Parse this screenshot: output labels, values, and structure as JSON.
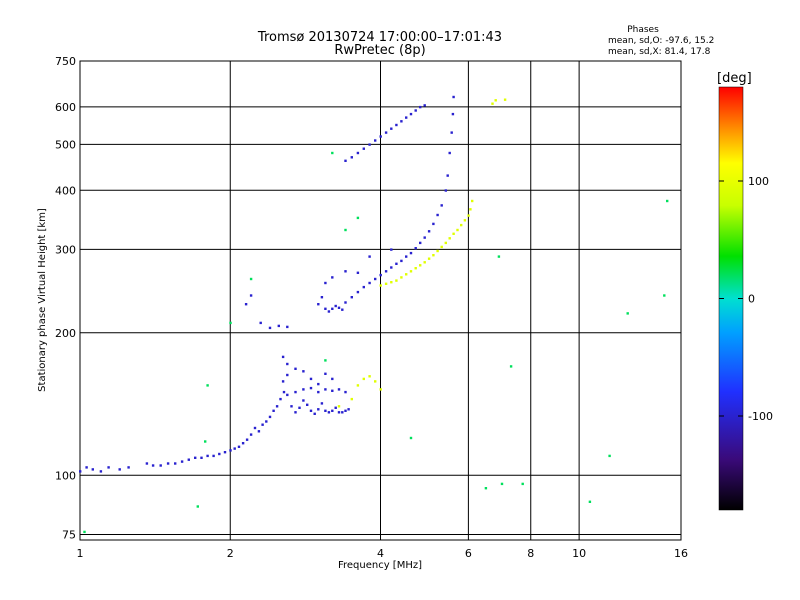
{
  "chart_data": {
    "type": "scatter",
    "title": "Tromsø 20130724 17:00:00–17:01:43",
    "subtitle": "RwPretec (8p)",
    "phases": {
      "heading": "Phases",
      "line1": "mean, sd,O: -97.6, 15.2",
      "line2": "mean, sd,X:  81.4, 17.8"
    },
    "xlabel": "Frequency [MHz]",
    "ylabel": "Stationary phase Virtual Height [km]",
    "x_scale": "log",
    "y_scale": "log",
    "xlim": [
      1,
      16
    ],
    "ylim": [
      73,
      750
    ],
    "x_ticks": [
      1,
      2,
      4,
      6,
      8,
      10,
      16
    ],
    "y_ticks": [
      75,
      100,
      200,
      300,
      400,
      500,
      600,
      750
    ],
    "grid": true,
    "colorbar": {
      "label": "[deg]",
      "range": [
        -180,
        180
      ],
      "ticks": [
        100,
        0,
        -100
      ]
    },
    "series": [
      {
        "points": [
          [
            1.0,
            102
          ],
          [
            1.03,
            104
          ],
          [
            1.06,
            103
          ],
          [
            1.1,
            102
          ],
          [
            1.14,
            104
          ],
          [
            1.2,
            103
          ],
          [
            1.25,
            104
          ],
          [
            1.36,
            106
          ],
          [
            1.4,
            105
          ],
          [
            1.45,
            105
          ],
          [
            1.5,
            106
          ],
          [
            1.55,
            106
          ],
          [
            1.6,
            107
          ],
          [
            1.65,
            108
          ],
          [
            1.7,
            109
          ],
          [
            1.75,
            109
          ],
          [
            1.8,
            110
          ],
          [
            1.85,
            110
          ],
          [
            1.9,
            111
          ],
          [
            1.95,
            112
          ],
          [
            2.0,
            113
          ],
          [
            2.04,
            114
          ],
          [
            2.08,
            115
          ],
          [
            2.12,
            117
          ],
          [
            2.16,
            119
          ],
          [
            2.2,
            122
          ],
          [
            2.24,
            126
          ],
          [
            2.28,
            124
          ],
          [
            2.32,
            128
          ],
          [
            2.36,
            130
          ],
          [
            2.4,
            133
          ],
          [
            2.44,
            137
          ],
          [
            2.48,
            140
          ],
          [
            2.52,
            145
          ],
          [
            2.56,
            150
          ],
          [
            2.6,
            148
          ],
          [
            2.65,
            140
          ],
          [
            2.7,
            136
          ],
          [
            2.75,
            139
          ],
          [
            2.8,
            144
          ],
          [
            2.85,
            141
          ],
          [
            2.9,
            137
          ],
          [
            2.95,
            135
          ],
          [
            3.0,
            138
          ],
          [
            3.05,
            142
          ],
          [
            3.1,
            137
          ],
          [
            3.15,
            136
          ],
          [
            3.2,
            137
          ],
          [
            3.25,
            139
          ],
          [
            3.3,
            136
          ],
          [
            3.35,
            136
          ],
          [
            3.4,
            137
          ],
          [
            3.45,
            138
          ],
          [
            2.55,
            158
          ],
          [
            2.6,
            163
          ],
          [
            2.7,
            150
          ],
          [
            2.8,
            152
          ],
          [
            2.9,
            153
          ],
          [
            3.0,
            150
          ],
          [
            3.1,
            152
          ],
          [
            3.2,
            151
          ],
          [
            2.15,
            230
          ],
          [
            2.2,
            240
          ],
          [
            2.3,
            210
          ],
          [
            2.4,
            205
          ],
          [
            2.5,
            207
          ],
          [
            2.6,
            206
          ],
          [
            2.55,
            178
          ],
          [
            2.6,
            172
          ],
          [
            2.7,
            168
          ],
          [
            2.8,
            166
          ],
          [
            2.9,
            160
          ],
          [
            3.0,
            156
          ],
          [
            3.1,
            164
          ],
          [
            3.2,
            160
          ],
          [
            3.3,
            152
          ],
          [
            3.4,
            150
          ],
          [
            3.0,
            230
          ],
          [
            3.05,
            238
          ],
          [
            3.1,
            225
          ],
          [
            3.15,
            222
          ],
          [
            3.2,
            225
          ],
          [
            3.25,
            228
          ],
          [
            3.3,
            226
          ],
          [
            3.35,
            224
          ],
          [
            3.4,
            232
          ],
          [
            3.5,
            238
          ],
          [
            3.6,
            244
          ],
          [
            3.7,
            250
          ],
          [
            3.8,
            255
          ],
          [
            3.9,
            260
          ],
          [
            4.0,
            265
          ],
          [
            4.1,
            270
          ],
          [
            4.2,
            275
          ],
          [
            4.3,
            280
          ],
          [
            4.4,
            284
          ],
          [
            4.5,
            290
          ],
          [
            4.6,
            295
          ],
          [
            4.7,
            302
          ],
          [
            4.8,
            310
          ],
          [
            4.9,
            318
          ],
          [
            5.0,
            328
          ],
          [
            5.1,
            340
          ],
          [
            5.2,
            355
          ],
          [
            5.3,
            372
          ],
          [
            5.4,
            400
          ],
          [
            5.45,
            430
          ],
          [
            5.5,
            480
          ],
          [
            5.55,
            530
          ],
          [
            5.58,
            580
          ],
          [
            5.6,
            630
          ],
          [
            3.1,
            255
          ],
          [
            3.2,
            262
          ],
          [
            3.4,
            270
          ],
          [
            3.6,
            268
          ],
          [
            3.8,
            290
          ],
          [
            4.2,
            300
          ],
          [
            3.4,
            462
          ],
          [
            3.5,
            470
          ],
          [
            3.6,
            480
          ],
          [
            3.7,
            490
          ],
          [
            3.8,
            500
          ],
          [
            3.9,
            510
          ],
          [
            4.0,
            520
          ],
          [
            4.1,
            530
          ],
          [
            4.2,
            540
          ],
          [
            4.3,
            550
          ],
          [
            4.4,
            560
          ],
          [
            4.5,
            570
          ],
          [
            4.6,
            580
          ],
          [
            4.7,
            590
          ],
          [
            4.8,
            600
          ],
          [
            4.9,
            605
          ]
        ],
        "phase": -100
      },
      {
        "points": [
          [
            4.0,
            252
          ],
          [
            4.1,
            254
          ],
          [
            4.2,
            256
          ],
          [
            4.3,
            258
          ],
          [
            4.4,
            262
          ],
          [
            4.5,
            266
          ],
          [
            4.6,
            270
          ],
          [
            4.7,
            274
          ],
          [
            4.8,
            278
          ],
          [
            4.9,
            282
          ],
          [
            5.0,
            287
          ],
          [
            5.1,
            292
          ],
          [
            5.2,
            298
          ],
          [
            5.3,
            304
          ],
          [
            5.4,
            310
          ],
          [
            5.5,
            317
          ],
          [
            5.6,
            324
          ],
          [
            5.7,
            330
          ],
          [
            5.8,
            338
          ],
          [
            5.9,
            346
          ],
          [
            6.0,
            354
          ],
          [
            6.05,
            365
          ],
          [
            6.1,
            380
          ],
          [
            3.6,
            155
          ],
          [
            3.7,
            160
          ],
          [
            3.8,
            162
          ],
          [
            3.9,
            158
          ],
          [
            4.0,
            152
          ],
          [
            3.5,
            145
          ],
          [
            3.3,
            140
          ],
          [
            6.7,
            610
          ],
          [
            6.8,
            620
          ],
          [
            7.1,
            622
          ]
        ],
        "phase": 95
      },
      {
        "points": [
          [
            1.02,
            76
          ],
          [
            1.72,
            86
          ],
          [
            1.78,
            118
          ],
          [
            1.8,
            155
          ],
          [
            2.0,
            210
          ],
          [
            2.2,
            260
          ],
          [
            3.1,
            175
          ],
          [
            4.6,
            120
          ],
          [
            6.5,
            94
          ],
          [
            7.0,
            96
          ],
          [
            7.7,
            96
          ],
          [
            11.5,
            110
          ],
          [
            14.8,
            240
          ],
          [
            10.5,
            88
          ],
          [
            12.5,
            220
          ],
          [
            15.0,
            380
          ],
          [
            7.3,
            170
          ],
          [
            6.9,
            290
          ],
          [
            3.2,
            480
          ],
          [
            3.4,
            330
          ],
          [
            3.6,
            350
          ]
        ],
        "phase": 20
      }
    ]
  }
}
